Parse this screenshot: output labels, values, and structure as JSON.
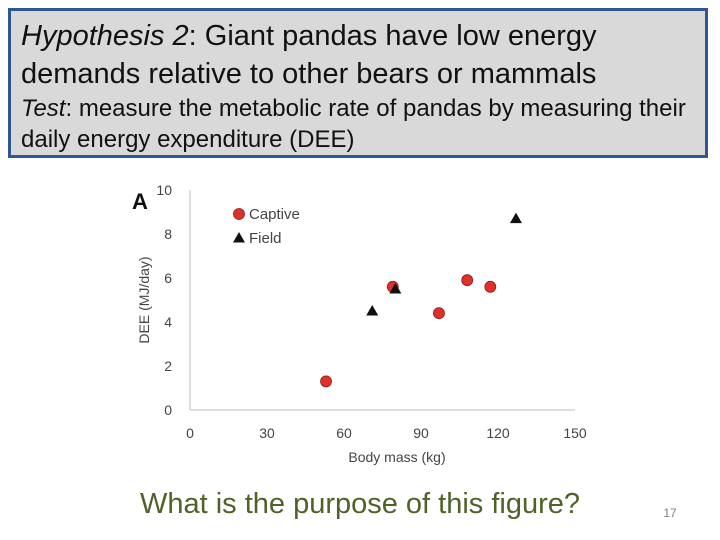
{
  "header": {
    "hypothesis_label": "Hypothesis 2",
    "hypothesis_text": ": Giant pandas have low energy demands relative to other bears or mammals",
    "test_label": "Test",
    "test_text": ": measure the metabolic rate of pandas by measuring their daily energy expenditure (DEE)"
  },
  "chart_data": {
    "type": "scatter",
    "panel_label": "A",
    "xlabel": "Body mass (kg)",
    "ylabel": "DEE (MJ/day)",
    "xlim": [
      0,
      150
    ],
    "ylim": [
      0,
      10
    ],
    "xticks": [
      0,
      30,
      60,
      90,
      120,
      150
    ],
    "yticks": [
      0,
      2,
      4,
      6,
      8,
      10
    ],
    "grid": false,
    "legend_position": "top-left",
    "series": [
      {
        "name": "Captive",
        "marker": "circle",
        "color": "#e0302a",
        "points": [
          {
            "x": 53,
            "y": 1.3
          },
          {
            "x": 79,
            "y": 5.6
          },
          {
            "x": 97,
            "y": 4.4
          },
          {
            "x": 108,
            "y": 5.9
          },
          {
            "x": 117,
            "y": 5.6
          }
        ]
      },
      {
        "name": "Field",
        "marker": "triangle",
        "color": "#111111",
        "points": [
          {
            "x": 71,
            "y": 4.5
          },
          {
            "x": 80,
            "y": 5.5
          },
          {
            "x": 127,
            "y": 8.7
          }
        ]
      }
    ]
  },
  "footer": {
    "question": "What is the purpose of this figure?",
    "page_number": "17"
  }
}
